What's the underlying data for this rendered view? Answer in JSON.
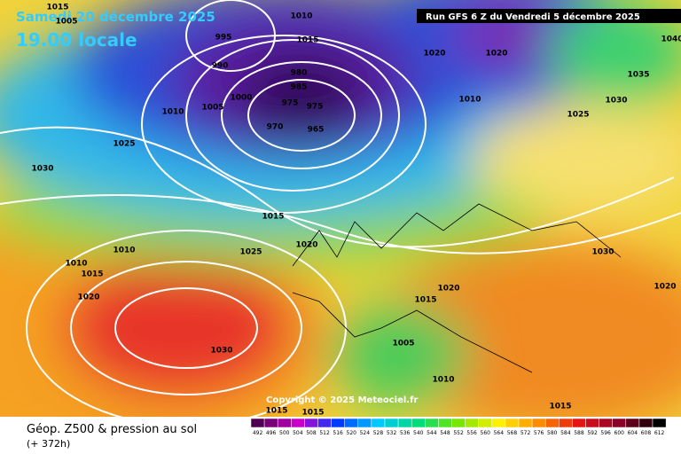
{
  "header": {
    "date": "Samedi 20 décembre 2025",
    "time": "19.00 locale",
    "run": "Run GFS 6 Z du Vendredi 5 décembre 2025"
  },
  "copyright": "Copyright © 2025 Meteociel.fr",
  "footer": {
    "title": "Géop. Z500 & pression au sol",
    "lead": "(+ 372h)"
  },
  "scale": {
    "labels": [
      "492",
      "496",
      "500",
      "504",
      "508",
      "512",
      "516",
      "520",
      "524",
      "528",
      "532",
      "536",
      "540",
      "544",
      "548",
      "552",
      "556",
      "560",
      "564",
      "568",
      "572",
      "576",
      "580",
      "584",
      "588",
      "592",
      "596",
      "600",
      "604",
      "608",
      "612"
    ]
  },
  "isobars": [
    "1015",
    "1005",
    "995",
    "990",
    "1010",
    "1015",
    "1020",
    "1020",
    "1040",
    "1035",
    "1010",
    "1025",
    "1030",
    "1025",
    "1030",
    "1010",
    "1005",
    "1000",
    "985",
    "980",
    "975",
    "975",
    "970",
    "965",
    "1015",
    "1020",
    "1025",
    "1010",
    "1010",
    "1015",
    "1020",
    "1030",
    "1020",
    "1020",
    "1015",
    "1005",
    "1010",
    "1015",
    "1015",
    "1015",
    "1030"
  ]
}
